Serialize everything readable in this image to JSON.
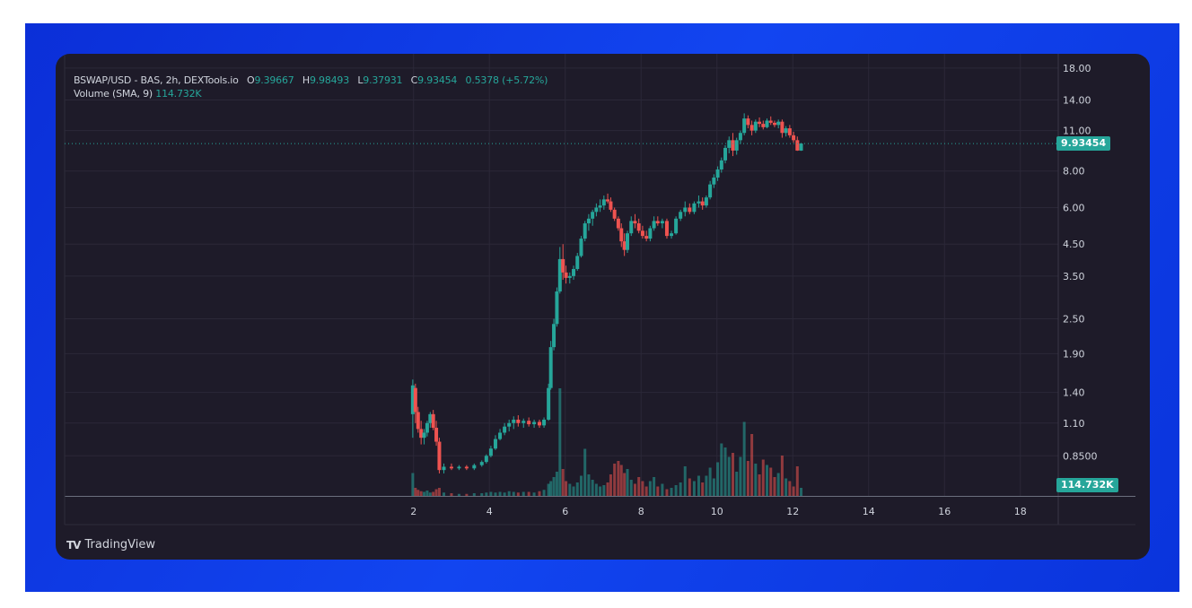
{
  "legend": {
    "title": "BSWAP/USD - BAS, 2h, DEXTools.io",
    "open_key": "O",
    "open": "9.39667",
    "high_key": "H",
    "high": "9.98493",
    "low_key": "L",
    "low": "9.37931",
    "close_key": "C",
    "close": "9.93454",
    "change": "0.5378 (+5.72%)",
    "volume_label": "Volume (SMA, 9)",
    "volume_value": "114.732K"
  },
  "last_price_label": "9.93454",
  "last_volume_label": "114.732K",
  "brand": {
    "icon": "TV",
    "name": "TradingView"
  },
  "colors": {
    "background": "#1e1b29",
    "up": "#26a69a",
    "down": "#ef5350",
    "grid": "#2b2838",
    "text": "#cfd3dc",
    "backdrop": "#0b2fd8"
  },
  "chart_data": {
    "type": "candlestick",
    "x_ticks": [
      "2",
      "4",
      "6",
      "8",
      "10",
      "12",
      "14",
      "16",
      "18"
    ],
    "x_tick_values": [
      2,
      4,
      6,
      8,
      10,
      12,
      14,
      16,
      18
    ],
    "xlim": [
      -7.2,
      19.0
    ],
    "y_scale": "log",
    "y_ticks": [
      "18.00",
      "14.00",
      "11.00",
      "8.00",
      "6.00",
      "4.50",
      "3.50",
      "2.50",
      "1.90",
      "1.40",
      "1.10",
      "0.8500"
    ],
    "y_tick_values": [
      18,
      14,
      11,
      8,
      6,
      4.5,
      3.5,
      2.5,
      1.9,
      1.4,
      1.1,
      0.85
    ],
    "ylim": [
      0.62,
      18.5
    ],
    "grid": true,
    "last_price": 9.93454,
    "candles": [
      [
        1.98,
        1.18,
        1.55,
        0.98,
        1.48
      ],
      [
        2.05,
        1.45,
        1.5,
        1.1,
        1.2
      ],
      [
        2.12,
        1.2,
        1.25,
        1.02,
        1.05
      ],
      [
        2.2,
        1.05,
        1.12,
        0.93,
        0.98
      ],
      [
        2.28,
        0.98,
        1.05,
        0.93,
        1.02
      ],
      [
        2.36,
        1.02,
        1.12,
        0.99,
        1.1
      ],
      [
        2.44,
        1.1,
        1.2,
        1.06,
        1.18
      ],
      [
        2.52,
        1.18,
        1.22,
        1.04,
        1.06
      ],
      [
        2.6,
        1.06,
        1.12,
        0.92,
        0.95
      ],
      [
        2.68,
        0.95,
        0.98,
        0.74,
        0.76
      ],
      [
        2.8,
        0.76,
        0.8,
        0.74,
        0.78
      ],
      [
        3.0,
        0.78,
        0.8,
        0.76,
        0.77
      ],
      [
        3.2,
        0.77,
        0.79,
        0.76,
        0.78
      ],
      [
        3.4,
        0.78,
        0.79,
        0.76,
        0.77
      ],
      [
        3.6,
        0.77,
        0.8,
        0.76,
        0.79
      ],
      [
        3.8,
        0.79,
        0.82,
        0.78,
        0.81
      ],
      [
        3.92,
        0.81,
        0.86,
        0.8,
        0.85
      ],
      [
        4.04,
        0.85,
        0.92,
        0.84,
        0.9
      ],
      [
        4.16,
        0.9,
        1.0,
        0.89,
        0.97
      ],
      [
        4.28,
        0.97,
        1.05,
        0.96,
        1.02
      ],
      [
        4.4,
        1.02,
        1.1,
        1.0,
        1.07
      ],
      [
        4.52,
        1.07,
        1.13,
        1.03,
        1.1
      ],
      [
        4.64,
        1.1,
        1.16,
        1.05,
        1.13
      ],
      [
        4.76,
        1.13,
        1.17,
        1.07,
        1.1
      ],
      [
        4.9,
        1.1,
        1.14,
        1.06,
        1.12
      ],
      [
        5.04,
        1.12,
        1.15,
        1.07,
        1.09
      ],
      [
        5.18,
        1.09,
        1.13,
        1.06,
        1.11
      ],
      [
        5.32,
        1.11,
        1.13,
        1.06,
        1.08
      ],
      [
        5.44,
        1.08,
        1.15,
        1.06,
        1.13
      ],
      [
        5.56,
        1.13,
        1.5,
        1.12,
        1.45
      ],
      [
        5.62,
        1.45,
        2.1,
        1.43,
        2.0
      ],
      [
        5.7,
        2.0,
        2.5,
        1.95,
        2.4
      ],
      [
        5.78,
        2.4,
        3.2,
        2.35,
        3.1
      ],
      [
        5.86,
        3.1,
        4.4,
        3.05,
        4.0
      ],
      [
        5.94,
        4.0,
        4.5,
        3.4,
        3.6
      ],
      [
        6.02,
        3.6,
        3.8,
        3.3,
        3.45
      ],
      [
        6.12,
        3.45,
        3.6,
        3.3,
        3.5
      ],
      [
        6.22,
        3.5,
        3.8,
        3.4,
        3.7
      ],
      [
        6.32,
        3.7,
        4.2,
        3.65,
        4.1
      ],
      [
        6.42,
        4.1,
        4.8,
        4.05,
        4.7
      ],
      [
        6.52,
        4.7,
        5.4,
        4.6,
        5.3
      ],
      [
        6.62,
        5.3,
        5.7,
        5.0,
        5.5
      ],
      [
        6.72,
        5.5,
        5.9,
        5.2,
        5.8
      ],
      [
        6.82,
        5.8,
        6.2,
        5.6,
        6.0
      ],
      [
        6.92,
        6.0,
        6.4,
        5.8,
        6.1
      ],
      [
        7.02,
        6.1,
        6.6,
        5.9,
        6.4
      ],
      [
        7.12,
        6.4,
        6.7,
        6.2,
        6.3
      ],
      [
        7.2,
        6.3,
        6.5,
        5.8,
        5.9
      ],
      [
        7.3,
        5.9,
        6.0,
        5.4,
        5.5
      ],
      [
        7.4,
        5.5,
        5.6,
        5.0,
        5.1
      ],
      [
        7.48,
        5.1,
        5.3,
        4.4,
        4.6
      ],
      [
        7.56,
        4.6,
        4.9,
        4.1,
        4.3
      ],
      [
        7.64,
        4.3,
        5.0,
        4.2,
        4.9
      ],
      [
        7.74,
        4.9,
        5.6,
        4.8,
        5.4
      ],
      [
        7.84,
        5.4,
        5.7,
        5.1,
        5.3
      ],
      [
        7.94,
        5.3,
        5.5,
        4.9,
        5.0
      ],
      [
        8.04,
        5.0,
        5.2,
        4.7,
        4.8
      ],
      [
        8.14,
        4.8,
        5.0,
        4.6,
        4.7
      ],
      [
        8.24,
        4.7,
        5.2,
        4.6,
        5.1
      ],
      [
        8.34,
        5.1,
        5.6,
        5.0,
        5.4
      ],
      [
        8.44,
        5.4,
        5.6,
        5.2,
        5.3
      ],
      [
        8.56,
        5.3,
        5.5,
        5.1,
        5.4
      ],
      [
        8.68,
        5.4,
        5.5,
        4.7,
        4.8
      ],
      [
        8.8,
        4.8,
        5.0,
        4.7,
        4.9
      ],
      [
        8.92,
        4.9,
        5.6,
        4.85,
        5.5
      ],
      [
        9.04,
        5.5,
        5.9,
        5.4,
        5.8
      ],
      [
        9.16,
        5.8,
        6.3,
        5.6,
        6.0
      ],
      [
        9.28,
        6.0,
        6.2,
        5.7,
        5.8
      ],
      [
        9.4,
        5.8,
        6.3,
        5.7,
        6.2
      ],
      [
        9.52,
        6.2,
        6.6,
        6.0,
        6.3
      ],
      [
        9.62,
        6.3,
        6.5,
        5.9,
        6.1
      ],
      [
        9.72,
        6.1,
        6.6,
        6.0,
        6.5
      ],
      [
        9.82,
        6.5,
        7.4,
        6.4,
        7.2
      ],
      [
        9.92,
        7.2,
        7.8,
        7.0,
        7.6
      ],
      [
        10.02,
        7.6,
        8.3,
        7.4,
        8.1
      ],
      [
        10.12,
        8.1,
        8.9,
        7.9,
        8.7
      ],
      [
        10.22,
        8.7,
        9.8,
        8.5,
        9.6
      ],
      [
        10.32,
        9.6,
        10.5,
        9.2,
        10.2
      ],
      [
        10.42,
        10.2,
        10.8,
        9.0,
        9.4
      ],
      [
        10.52,
        9.4,
        10.4,
        9.1,
        10.2
      ],
      [
        10.62,
        10.2,
        11.0,
        9.9,
        10.8
      ],
      [
        10.72,
        10.8,
        12.6,
        10.6,
        12.1
      ],
      [
        10.82,
        12.1,
        12.4,
        11.2,
        11.5
      ],
      [
        10.92,
        11.5,
        11.9,
        10.6,
        11.0
      ],
      [
        11.02,
        11.0,
        12.0,
        10.8,
        11.8
      ],
      [
        11.12,
        11.8,
        12.2,
        11.3,
        11.6
      ],
      [
        11.22,
        11.6,
        11.9,
        11.1,
        11.3
      ],
      [
        11.32,
        11.3,
        12.1,
        11.2,
        11.9
      ],
      [
        11.42,
        11.9,
        12.3,
        11.5,
        11.7
      ],
      [
        11.52,
        11.7,
        11.9,
        11.3,
        11.5
      ],
      [
        11.62,
        11.5,
        12.0,
        11.2,
        11.8
      ],
      [
        11.72,
        11.8,
        12.0,
        10.4,
        10.8
      ],
      [
        11.82,
        10.8,
        11.4,
        10.5,
        11.2
      ],
      [
        11.92,
        11.2,
        11.5,
        10.4,
        10.6
      ],
      [
        12.02,
        10.6,
        10.9,
        10.0,
        10.2
      ],
      [
        12.12,
        10.2,
        10.5,
        9.38,
        9.4
      ],
      [
        12.22,
        9.39667,
        9.98493,
        9.37931,
        9.93454
      ]
    ],
    "volumes": [
      [
        1.98,
        34
      ],
      [
        2.05,
        12
      ],
      [
        2.12,
        9
      ],
      [
        2.2,
        7
      ],
      [
        2.28,
        6
      ],
      [
        2.36,
        8
      ],
      [
        2.44,
        5
      ],
      [
        2.52,
        6
      ],
      [
        2.6,
        10
      ],
      [
        2.68,
        12
      ],
      [
        2.8,
        5
      ],
      [
        3.0,
        4
      ],
      [
        3.2,
        3
      ],
      [
        3.4,
        3
      ],
      [
        3.6,
        4
      ],
      [
        3.8,
        4
      ],
      [
        3.92,
        5
      ],
      [
        4.04,
        6
      ],
      [
        4.16,
        5
      ],
      [
        4.28,
        6
      ],
      [
        4.4,
        5
      ],
      [
        4.52,
        7
      ],
      [
        4.64,
        6
      ],
      [
        4.76,
        5
      ],
      [
        4.9,
        6
      ],
      [
        5.04,
        6
      ],
      [
        5.18,
        5
      ],
      [
        5.32,
        7
      ],
      [
        5.44,
        9
      ],
      [
        5.56,
        18
      ],
      [
        5.62,
        22
      ],
      [
        5.7,
        28
      ],
      [
        5.78,
        36
      ],
      [
        5.86,
        160
      ],
      [
        5.94,
        40
      ],
      [
        6.02,
        22
      ],
      [
        6.12,
        18
      ],
      [
        6.22,
        14
      ],
      [
        6.32,
        20
      ],
      [
        6.42,
        30
      ],
      [
        6.52,
        70
      ],
      [
        6.62,
        32
      ],
      [
        6.72,
        24
      ],
      [
        6.82,
        18
      ],
      [
        6.92,
        14
      ],
      [
        7.02,
        16
      ],
      [
        7.12,
        20
      ],
      [
        7.2,
        32
      ],
      [
        7.3,
        48
      ],
      [
        7.4,
        52
      ],
      [
        7.48,
        46
      ],
      [
        7.56,
        34
      ],
      [
        7.64,
        40
      ],
      [
        7.74,
        24
      ],
      [
        7.84,
        18
      ],
      [
        7.94,
        28
      ],
      [
        8.04,
        22
      ],
      [
        8.14,
        14
      ],
      [
        8.24,
        22
      ],
      [
        8.34,
        28
      ],
      [
        8.44,
        14
      ],
      [
        8.56,
        18
      ],
      [
        8.68,
        10
      ],
      [
        8.8,
        12
      ],
      [
        8.92,
        16
      ],
      [
        9.04,
        20
      ],
      [
        9.16,
        44
      ],
      [
        9.28,
        26
      ],
      [
        9.4,
        22
      ],
      [
        9.52,
        30
      ],
      [
        9.62,
        20
      ],
      [
        9.72,
        30
      ],
      [
        9.82,
        42
      ],
      [
        9.92,
        26
      ],
      [
        10.02,
        50
      ],
      [
        10.12,
        78
      ],
      [
        10.22,
        72
      ],
      [
        10.32,
        58
      ],
      [
        10.42,
        64
      ],
      [
        10.52,
        36
      ],
      [
        10.62,
        58
      ],
      [
        10.72,
        110
      ],
      [
        10.82,
        52
      ],
      [
        10.92,
        92
      ],
      [
        11.02,
        48
      ],
      [
        11.12,
        32
      ],
      [
        11.22,
        54
      ],
      [
        11.32,
        46
      ],
      [
        11.42,
        42
      ],
      [
        11.52,
        28
      ],
      [
        11.62,
        34
      ],
      [
        11.72,
        60
      ],
      [
        11.82,
        26
      ],
      [
        11.92,
        22
      ],
      [
        12.02,
        14
      ],
      [
        12.12,
        44
      ],
      [
        12.22,
        12
      ]
    ]
  }
}
